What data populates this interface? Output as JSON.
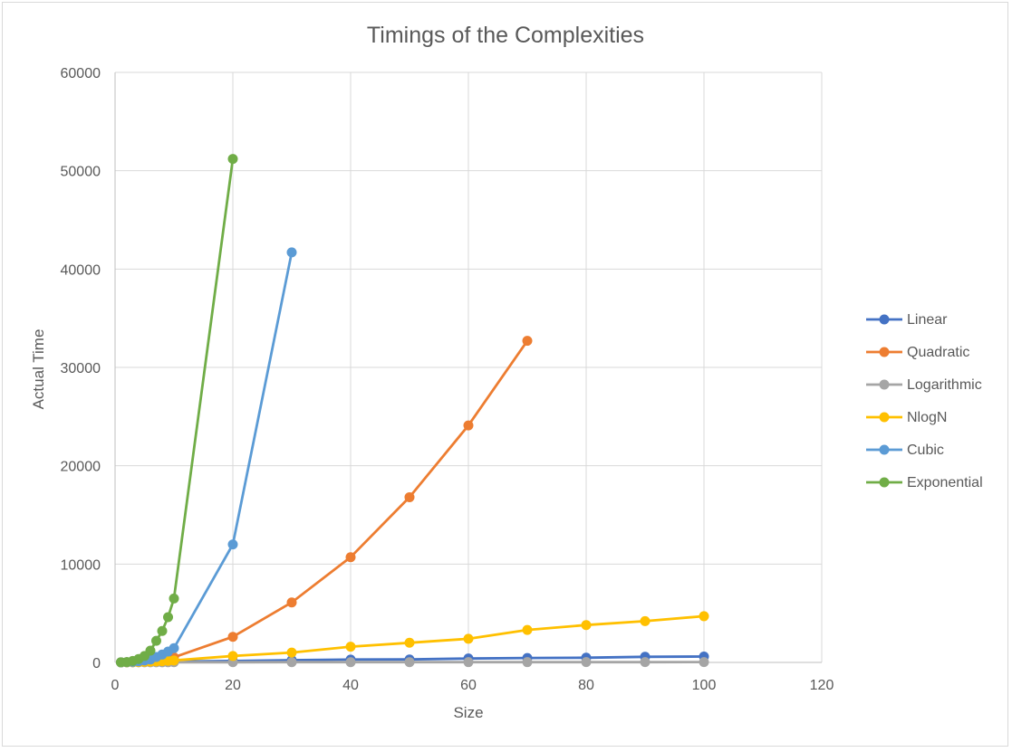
{
  "chart_data": {
    "type": "scatter",
    "title": "Timings of the Complexities",
    "xlabel": "Size",
    "ylabel": "Actual Time",
    "xlim": [
      0,
      120
    ],
    "ylim": [
      0,
      60000
    ],
    "xticks": [
      0,
      20,
      40,
      60,
      80,
      100,
      120
    ],
    "yticks": [
      0,
      10000,
      20000,
      30000,
      40000,
      50000,
      60000
    ],
    "grid": true,
    "legend_position": "right",
    "series": [
      {
        "name": "Linear",
        "color": "#4472C4",
        "x": [
          1,
          2,
          3,
          4,
          5,
          6,
          7,
          8,
          9,
          10,
          20,
          30,
          40,
          50,
          60,
          70,
          80,
          90,
          100
        ],
        "y": [
          10,
          15,
          25,
          35,
          45,
          55,
          65,
          75,
          85,
          95,
          150,
          230,
          290,
          300,
          400,
          450,
          480,
          570,
          600
        ]
      },
      {
        "name": "Quadratic",
        "color": "#ED7D31",
        "x": [
          1,
          2,
          3,
          4,
          5,
          6,
          7,
          8,
          9,
          10,
          20,
          30,
          40,
          50,
          60,
          70
        ],
        "y": [
          5,
          20,
          45,
          80,
          130,
          180,
          250,
          330,
          420,
          520,
          2600,
          6100,
          10700,
          16800,
          24100,
          32700
        ]
      },
      {
        "name": "Logarithmic",
        "color": "#A5A5A5",
        "x": [
          1,
          2,
          3,
          4,
          5,
          6,
          7,
          8,
          9,
          10,
          20,
          30,
          40,
          50,
          60,
          70,
          80,
          90,
          100
        ],
        "y": [
          5,
          8,
          10,
          12,
          14,
          15,
          16,
          17,
          18,
          19,
          22,
          24,
          26,
          28,
          29,
          30,
          31,
          32,
          33
        ]
      },
      {
        "name": "NlogN",
        "color": "#FFC000",
        "x": [
          1,
          2,
          3,
          4,
          5,
          6,
          7,
          8,
          9,
          10,
          20,
          30,
          40,
          50,
          60,
          70,
          80,
          90,
          100
        ],
        "y": [
          5,
          15,
          25,
          40,
          60,
          80,
          100,
          130,
          160,
          200,
          650,
          1000,
          1600,
          2000,
          2400,
          3300,
          3800,
          4200,
          4700
        ]
      },
      {
        "name": "Cubic",
        "color": "#5B9BD5",
        "x": [
          1,
          2,
          3,
          4,
          5,
          6,
          7,
          8,
          9,
          10,
          20,
          30
        ],
        "y": [
          5,
          20,
          60,
          120,
          200,
          300,
          550,
          800,
          1100,
          1450,
          12000,
          41700
        ]
      },
      {
        "name": "Exponential",
        "color": "#70AD47",
        "x": [
          1,
          2,
          3,
          4,
          5,
          6,
          7,
          8,
          9,
          10,
          20
        ],
        "y": [
          10,
          40,
          150,
          350,
          650,
          1200,
          2200,
          3200,
          4600,
          6500,
          51200
        ]
      }
    ]
  }
}
